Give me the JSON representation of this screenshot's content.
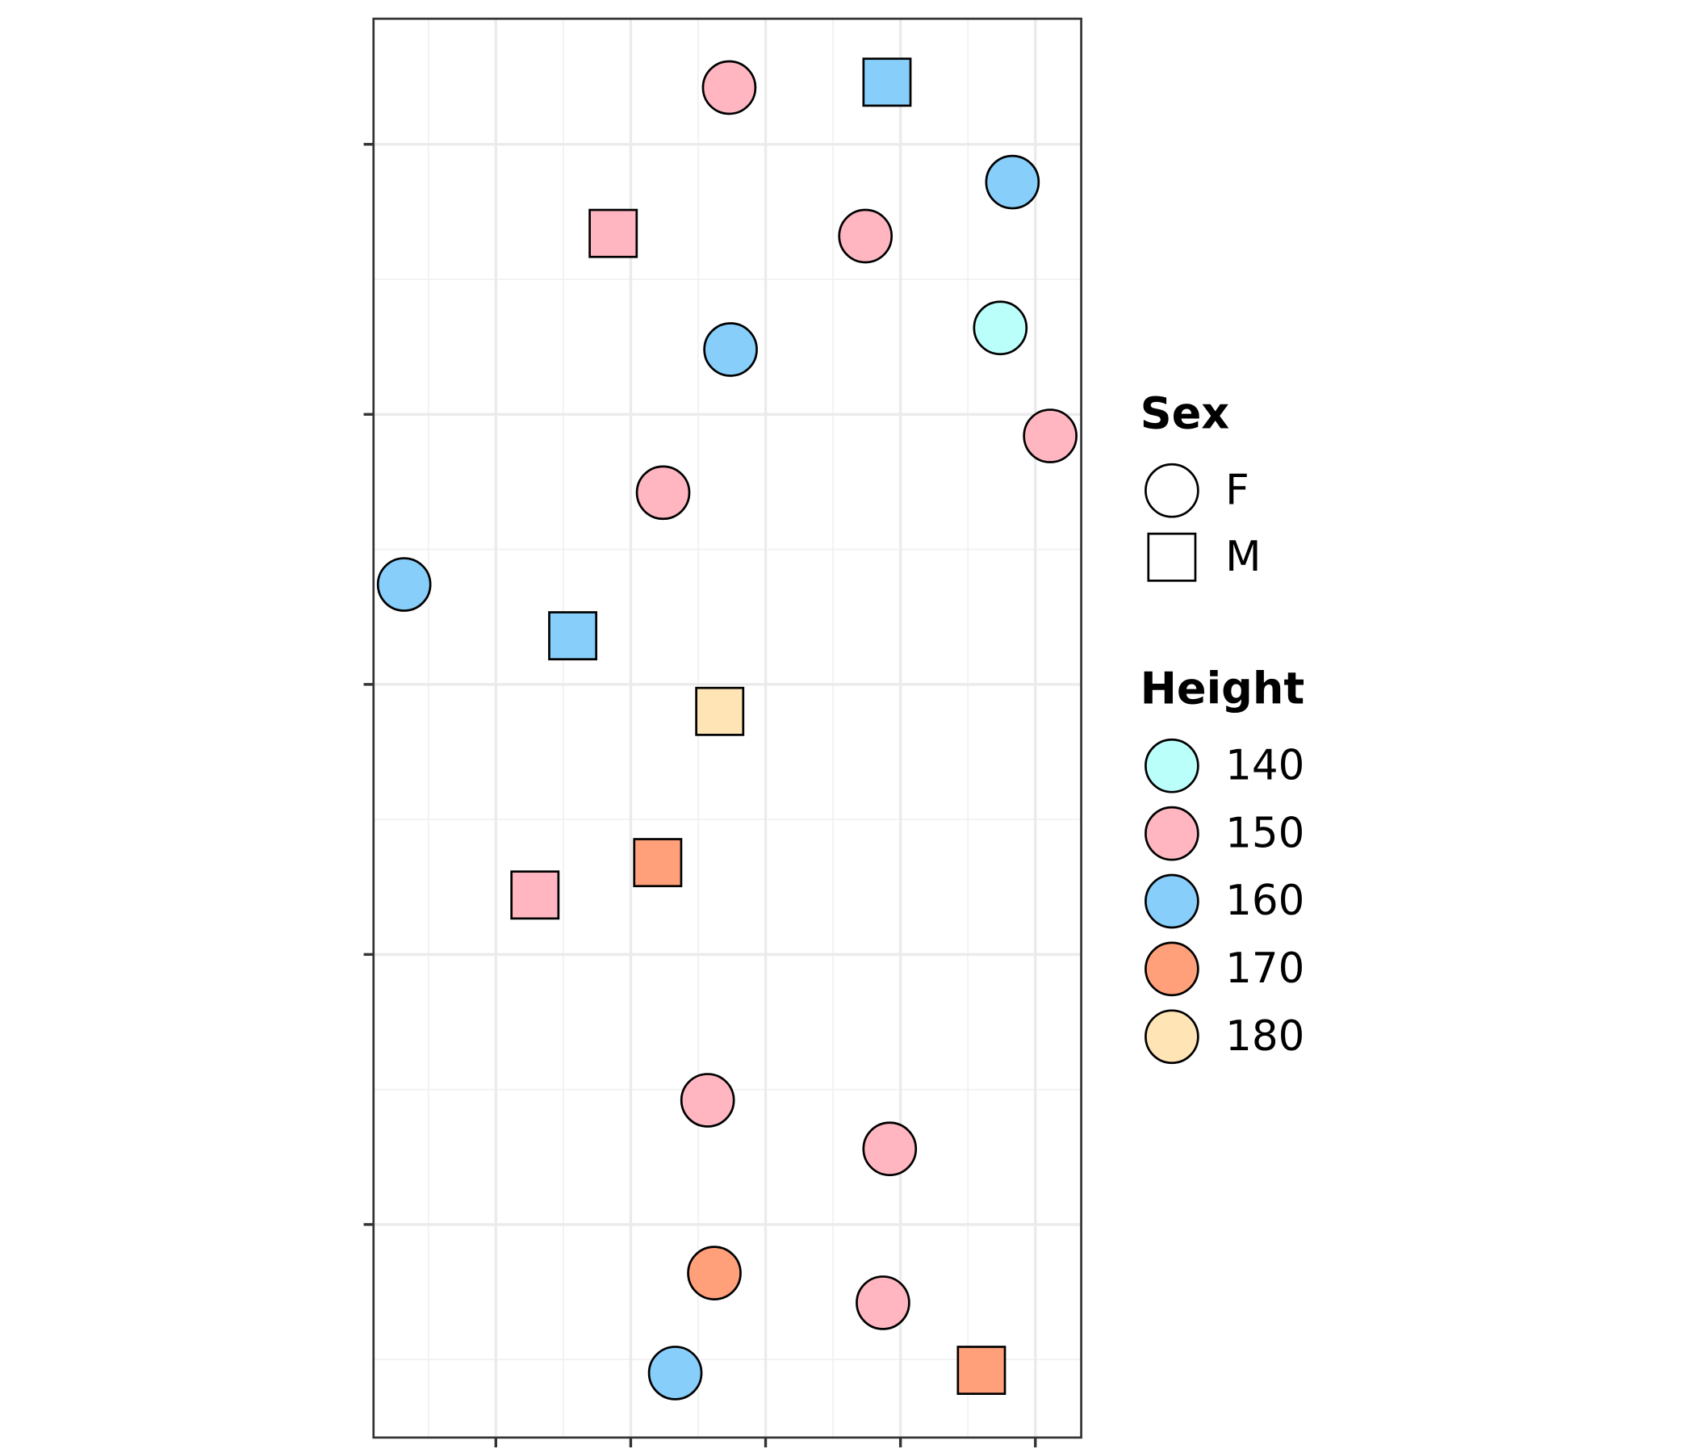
{
  "chart_data": {
    "type": "scatter",
    "x": [
      2.73,
      3.9,
      4.83,
      1.87,
      3.74,
      4.74,
      2.74,
      5.11,
      2.24,
      0.32,
      1.57,
      2.66,
      2.2,
      1.29,
      2.57,
      3.92,
      2.62,
      3.87,
      2.33,
      4.6
    ],
    "y": [
      5.21,
      5.23,
      4.86,
      4.67,
      4.66,
      4.32,
      4.24,
      3.92,
      3.71,
      3.37,
      3.18,
      2.9,
      2.34,
      2.22,
      1.46,
      1.28,
      0.82,
      0.71,
      0.45,
      0.46
    ],
    "sex": [
      "F",
      "M",
      "F",
      "M",
      "F",
      "F",
      "F",
      "F",
      "F",
      "F",
      "M",
      "M",
      "M",
      "M",
      "F",
      "F",
      "F",
      "F",
      "F",
      "M"
    ],
    "height": [
      150,
      160,
      160,
      150,
      150,
      140,
      160,
      150,
      150,
      160,
      160,
      180,
      170,
      150,
      150,
      150,
      170,
      150,
      160,
      170
    ],
    "xlim": [
      0.093,
      5.34
    ],
    "ylim": [
      0.211,
      5.465
    ],
    "xticks": [
      1,
      2,
      3,
      4,
      5
    ],
    "yticks": [
      1,
      2,
      3,
      4,
      5
    ],
    "grid": true,
    "shape_legend": {
      "title": "Sex",
      "levels": [
        "F",
        "M"
      ],
      "shapes": [
        "circle",
        "square"
      ]
    },
    "fill_legend": {
      "title": "Height",
      "levels": [
        140,
        150,
        160,
        170,
        180
      ],
      "colors": [
        "#bbfffb",
        "#ffb6c1",
        "#87cefa",
        "#ffa07a",
        "#ffe4b5"
      ]
    }
  }
}
